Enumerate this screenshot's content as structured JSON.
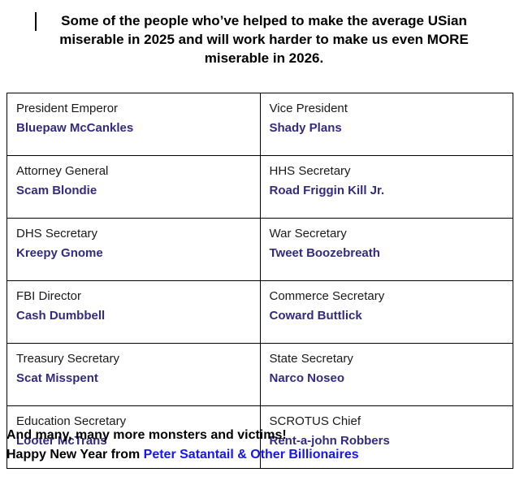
{
  "colors": {
    "background": "#ffffff",
    "title_text": "#000000",
    "role_text": "#1a1a1a",
    "name_purple": "#332b7f",
    "link_blue": "#1414ff",
    "table_border": "#000000"
  },
  "title": {
    "lines": [
      "Some of the people who’ve helped to make the average USian",
      "miserable in 2025 and will work harder to make us even MORE",
      "miserable in 2026."
    ]
  },
  "cabinet_table": {
    "rows": [
      {
        "cells": [
          {
            "role": "President Emperor",
            "name": "Bluepaw McCankles"
          },
          {
            "role": "Vice President",
            "name": "Shady Plans"
          }
        ]
      },
      {
        "cells": [
          {
            "role": "Attorney General",
            "name": "Scam Blondie"
          },
          {
            "role": "HHS Secretary",
            "name": "Road Friggin Kill Jr."
          }
        ]
      },
      {
        "cells": [
          {
            "role": "DHS Secretary",
            "name": "Kreepy Gnome"
          },
          {
            "role": "War Secretary",
            "name": "Tweet Boozebreath"
          }
        ]
      },
      {
        "cells": [
          {
            "role": "FBI Director",
            "name": "Cash Dumbbell"
          },
          {
            "role": "Commerce Secretary",
            "name": "Coward Buttlick"
          }
        ]
      },
      {
        "cells": [
          {
            "role": "Treasury Secretary",
            "name": "Scat Misspent"
          },
          {
            "role": "State Secretary",
            "name": "Narco Noseo"
          }
        ]
      },
      {
        "cells": [
          {
            "role": "Education Secretary",
            "name": "Looter McTrans"
          },
          {
            "role": "SCROTUS Chief",
            "name": "Rent-a-john Robbers"
          }
        ]
      }
    ]
  },
  "footer": {
    "line1": "And many, many more monsters and victims!",
    "line2_prefix": "Happy New Year from ",
    "line2_link": "Peter Satantail & Other Billionaires"
  }
}
